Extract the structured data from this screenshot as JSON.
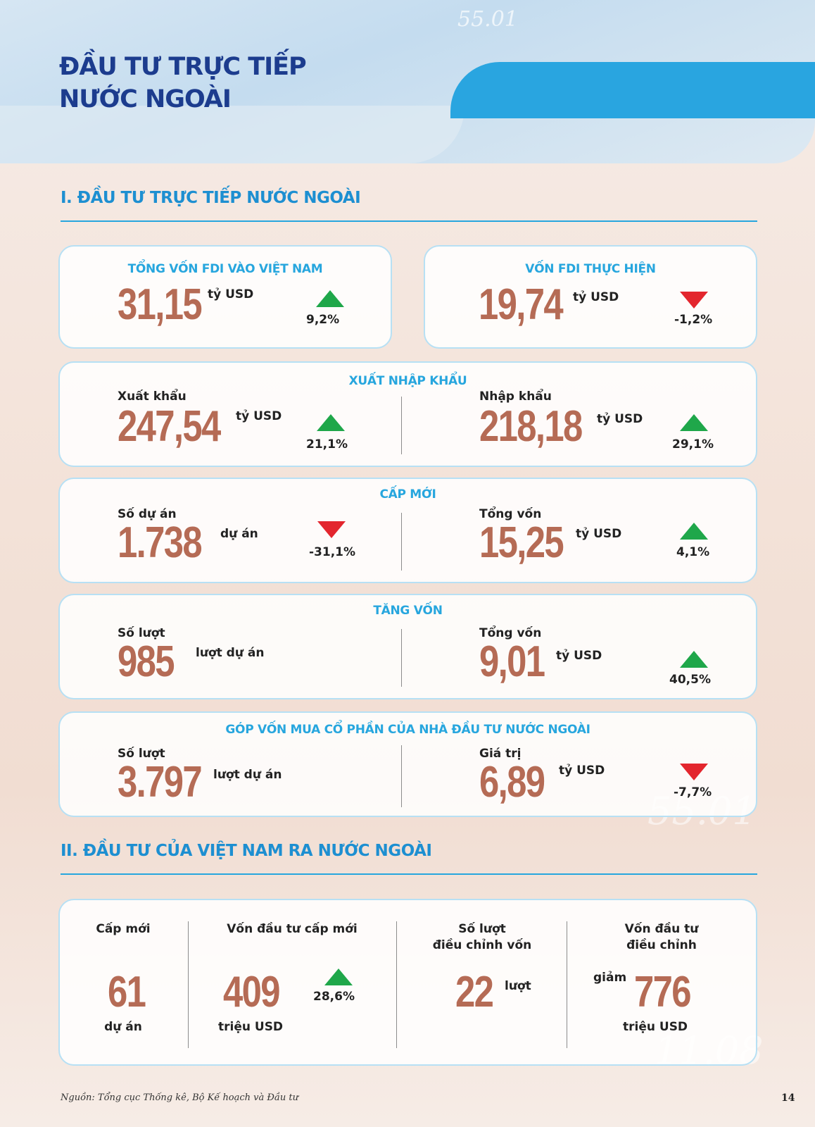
{
  "header": {
    "title_line1": "ĐẦU TƯ TRỰC TIẾP",
    "title_line2": "NƯỚC NGOÀI"
  },
  "decor": {
    "n1": "55.01",
    "n2": "55.01",
    "n3": "11.08"
  },
  "colors": {
    "title": "#1c3c8e",
    "accent": "#27a6de",
    "number": "#b56b55",
    "up": "#1fa74a",
    "down": "#e3262e"
  },
  "section1": {
    "title": "I. ĐẦU TƯ TRỰC TIẾP NƯỚC NGOÀI",
    "fdi_total": {
      "title": "TỔNG VỐN FDI VÀO VIỆT NAM",
      "value": "31,15",
      "unit": "tỷ USD",
      "change": "9,2%",
      "direction": "up"
    },
    "fdi_disbursed": {
      "title": "VỐN FDI THỰC HIỆN",
      "value": "19,74",
      "unit": "tỷ USD",
      "change": "-1,2%",
      "direction": "down"
    },
    "trade": {
      "title": "XUẤT NHẬP KHẨU",
      "export": {
        "label": "Xuất khẩu",
        "value": "247,54",
        "unit": "tỷ USD",
        "change": "21,1%",
        "direction": "up"
      },
      "import": {
        "label": "Nhập khẩu",
        "value": "218,18",
        "unit": "tỷ USD",
        "change": "29,1%",
        "direction": "up"
      }
    },
    "new_projects": {
      "title": "CẤP MỚI",
      "count": {
        "label": "Số dự án",
        "value": "1.738",
        "unit": "dự án",
        "change": "-31,1%",
        "direction": "down"
      },
      "capital": {
        "label": "Tổng vốn",
        "value": "15,25",
        "unit": "tỷ USD",
        "change": "4,1%",
        "direction": "up"
      }
    },
    "capital_increase": {
      "title": "TĂNG VỐN",
      "count": {
        "label": "Số lượt",
        "value": "985",
        "unit": "lượt dự án"
      },
      "capital": {
        "label": "Tổng vốn",
        "value": "9,01",
        "unit": "tỷ USD",
        "change": "40,5%",
        "direction": "up"
      }
    },
    "share_purchase": {
      "title": "GÓP VỐN MUA CỔ PHẦN CỦA NHÀ ĐẦU TƯ NƯỚC NGOÀI",
      "count": {
        "label": "Số lượt",
        "value": "3.797",
        "unit": "lượt dự án"
      },
      "value": {
        "label": "Giá trị",
        "value": "6,89",
        "unit": "tỷ USD",
        "change": "-7,7%",
        "direction": "down"
      }
    }
  },
  "section2": {
    "title": "II. ĐẦU TƯ CỦA VIỆT NAM RA NƯỚC NGOÀI",
    "new_projects": {
      "header": "Cấp mới",
      "value": "61",
      "unit": "dự án"
    },
    "new_capital": {
      "header": "Vốn đầu tư cấp mới",
      "value": "409",
      "unit": "triệu USD",
      "change": "28,6%",
      "direction": "up"
    },
    "adjustments": {
      "header_line1": "Số lượt",
      "header_line2": "điều chỉnh vốn",
      "value": "22",
      "unit": "lượt"
    },
    "adjusted_capital": {
      "header_line1": "Vốn đầu tư",
      "header_line2": "điều chỉnh",
      "prefix": "giảm",
      "value": "776",
      "unit": "triệu USD"
    }
  },
  "footer": {
    "source": "Nguồn: Tổng cục Thống kê, Bộ Kế hoạch và Đầu tư",
    "page": "14"
  }
}
